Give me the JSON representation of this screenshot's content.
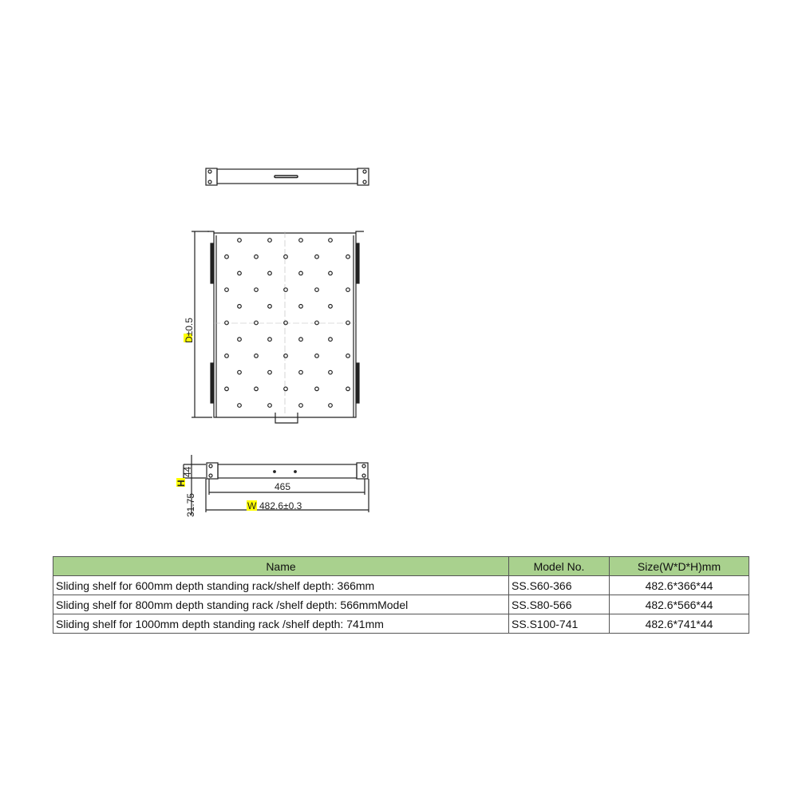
{
  "drawing": {
    "depth_label": "D±0.5",
    "height_label": "44",
    "height_letter": "H",
    "offset_label": "31.75",
    "inner_width_label": "465",
    "width_letter": "W",
    "width_label": "482.6±0.3",
    "highlight_color": "#ffff00"
  },
  "table": {
    "header_color": "#a9d18e",
    "headers": [
      "Name",
      "Model No.",
      "Size(W*D*H)mm"
    ],
    "rows": [
      [
        "Sliding shelf for 600mm depth standing rack/shelf depth: 366mm",
        "SS.S60-366",
        "482.6*366*44"
      ],
      [
        "Sliding shelf for 800mm depth standing rack /shelf depth: 566mmModel",
        "SS.S80-566",
        "482.6*566*44"
      ],
      [
        "Sliding shelf for 1000mm depth standing rack /shelf depth: 741mm",
        "SS.S100-741",
        "482.6*741*44"
      ]
    ]
  }
}
